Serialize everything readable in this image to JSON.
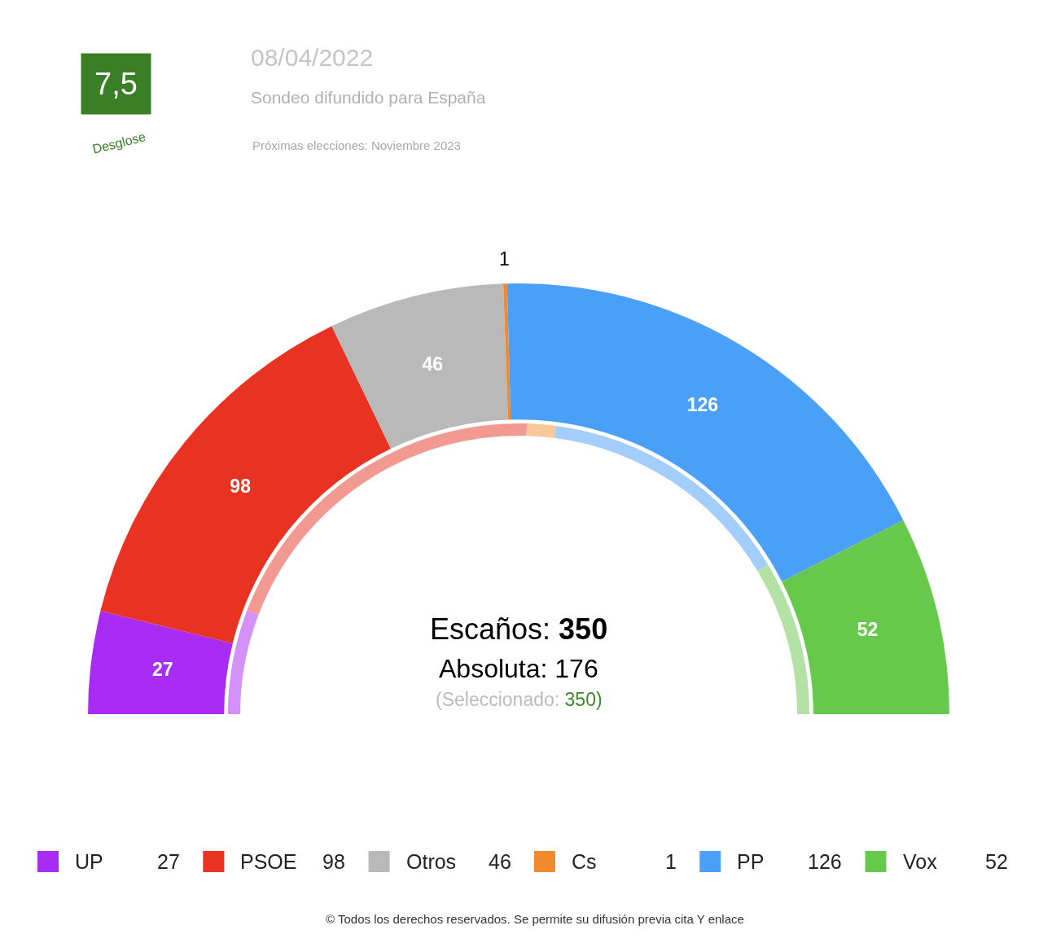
{
  "chart_data": {
    "type": "donut",
    "title": "08/04/2022",
    "subtitle": "Sondeo difundido para España",
    "annotations": [
      "Próximas elecciones: Noviembre 2023",
      "7,5",
      "Desglose",
      "Escaños: 350",
      "Absoluta: 176",
      "(Seleccionado: 350)",
      "© Todos los derechos reservados. Se permite su difusión previa cita Y enlace"
    ],
    "categories": [
      "UP",
      "PSOE",
      "Otros",
      "Cs",
      "PP",
      "Vox"
    ],
    "series": [
      {
        "values": [
          27,
          98,
          46,
          1,
          126,
          52
        ],
        "colors": [
          "#a92cf5",
          "#e83323",
          "#b9b9b9",
          "#f08a2c",
          "#4aa0f7",
          "#67c94c"
        ],
        "value_labels": [
          "27",
          "98",
          "46",
          "1",
          "126",
          "52"
        ]
      },
      {
        "values": [
          11.6,
          39.3,
          null,
          3.2,
          28.7,
          17.2
        ],
        "colors": [
          "#d492f9",
          "#f29a91",
          null,
          "#f7c898",
          "#a3cdfa",
          "#b3e2a4"
        ]
      }
    ],
    "legend": "bottom"
  }
}
